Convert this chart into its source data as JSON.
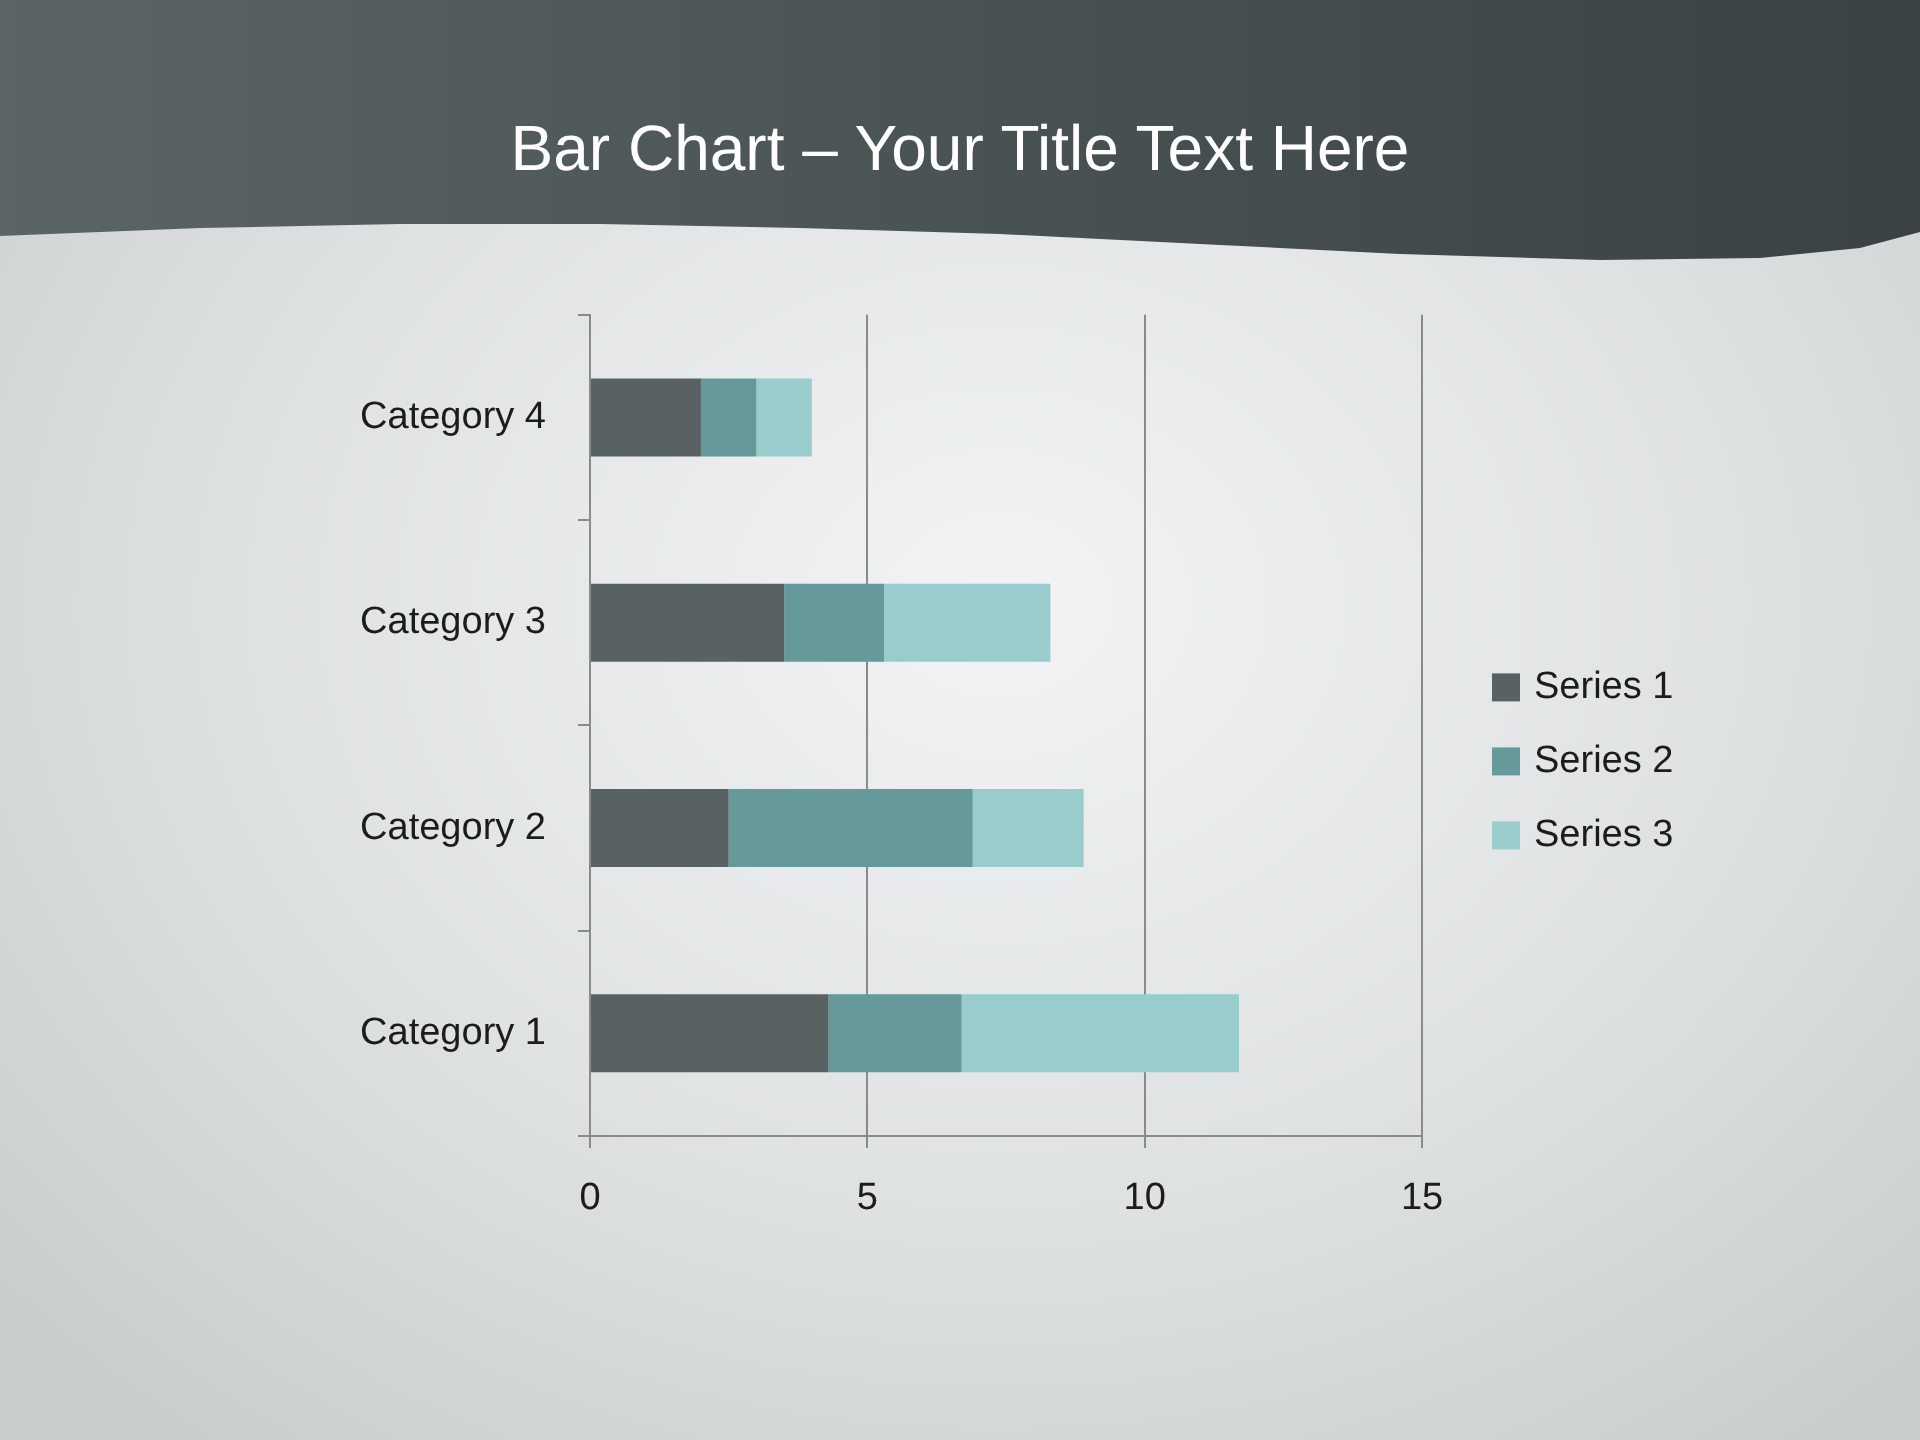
{
  "chart_data": {
    "type": "bar",
    "title": "Bar Chart – Your Title Text Here",
    "orientation": "horizontal",
    "stacked": true,
    "categories": [
      "Category 4",
      "Category 3",
      "Category 2",
      "Category 1"
    ],
    "series": [
      {
        "name": "Series 1",
        "color": "#596262",
        "values": [
          2,
          3.5,
          2.5,
          4.3
        ]
      },
      {
        "name": "Series 2",
        "color": "#669999",
        "values": [
          1,
          1.8,
          4.4,
          2.4
        ]
      },
      {
        "name": "Series 3",
        "color": "#99cccc",
        "values": [
          1,
          3,
          2,
          5
        ]
      }
    ],
    "xlim": [
      0,
      15
    ],
    "xticks": [
      0,
      5,
      10,
      15
    ],
    "grid": "x",
    "legend": "right"
  }
}
